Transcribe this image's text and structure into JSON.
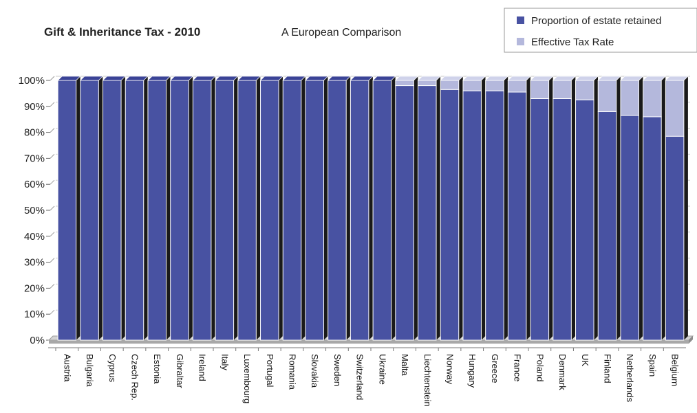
{
  "chart_data": {
    "type": "bar",
    "stacked": true,
    "title": "Gift & Inheritance Tax - 2010",
    "subtitle": "A European Comparison",
    "xlabel": "",
    "ylabel": "",
    "ylim": [
      0,
      100
    ],
    "y_ticks": [
      "0%",
      "10%",
      "20%",
      "30%",
      "40%",
      "50%",
      "60%",
      "70%",
      "80%",
      "90%",
      "100%"
    ],
    "legend_position": "top-right",
    "grid": true,
    "categories": [
      "Austria",
      "Bulgaria",
      "Cyprus",
      "Czech Rep.",
      "Estonia",
      "Gibraltar",
      "Ireland",
      "Italy",
      "Luxembourg",
      "Portugal",
      "Romania",
      "Slovakia",
      "Sweden",
      "Switzerland",
      "Ukraine",
      "Malta",
      "Liechtenstein",
      "Norway",
      "Hungary",
      "Greece",
      "France",
      "Poland",
      "Denmark",
      "UK",
      "Finland",
      "Netherlands",
      "Spain",
      "Belgium"
    ],
    "series": [
      {
        "name": "Proportion of estate retained",
        "color": "#4852a2",
        "values": [
          100,
          100,
          100,
          100,
          100,
          100,
          100,
          100,
          100,
          100,
          100,
          100,
          100,
          100,
          100,
          98,
          98,
          96.5,
          96,
          96,
          95.5,
          93,
          93,
          92.5,
          88,
          86.5,
          86,
          78.5
        ]
      },
      {
        "name": "Effective Tax Rate",
        "color": "#b4b8dc",
        "values": [
          0,
          0,
          0,
          0,
          0,
          0,
          0,
          0,
          0,
          0,
          0,
          0,
          0,
          0,
          0,
          2,
          2,
          3.5,
          4,
          4,
          4.5,
          7,
          7,
          7.5,
          12,
          13.5,
          14,
          21.5
        ]
      }
    ]
  }
}
